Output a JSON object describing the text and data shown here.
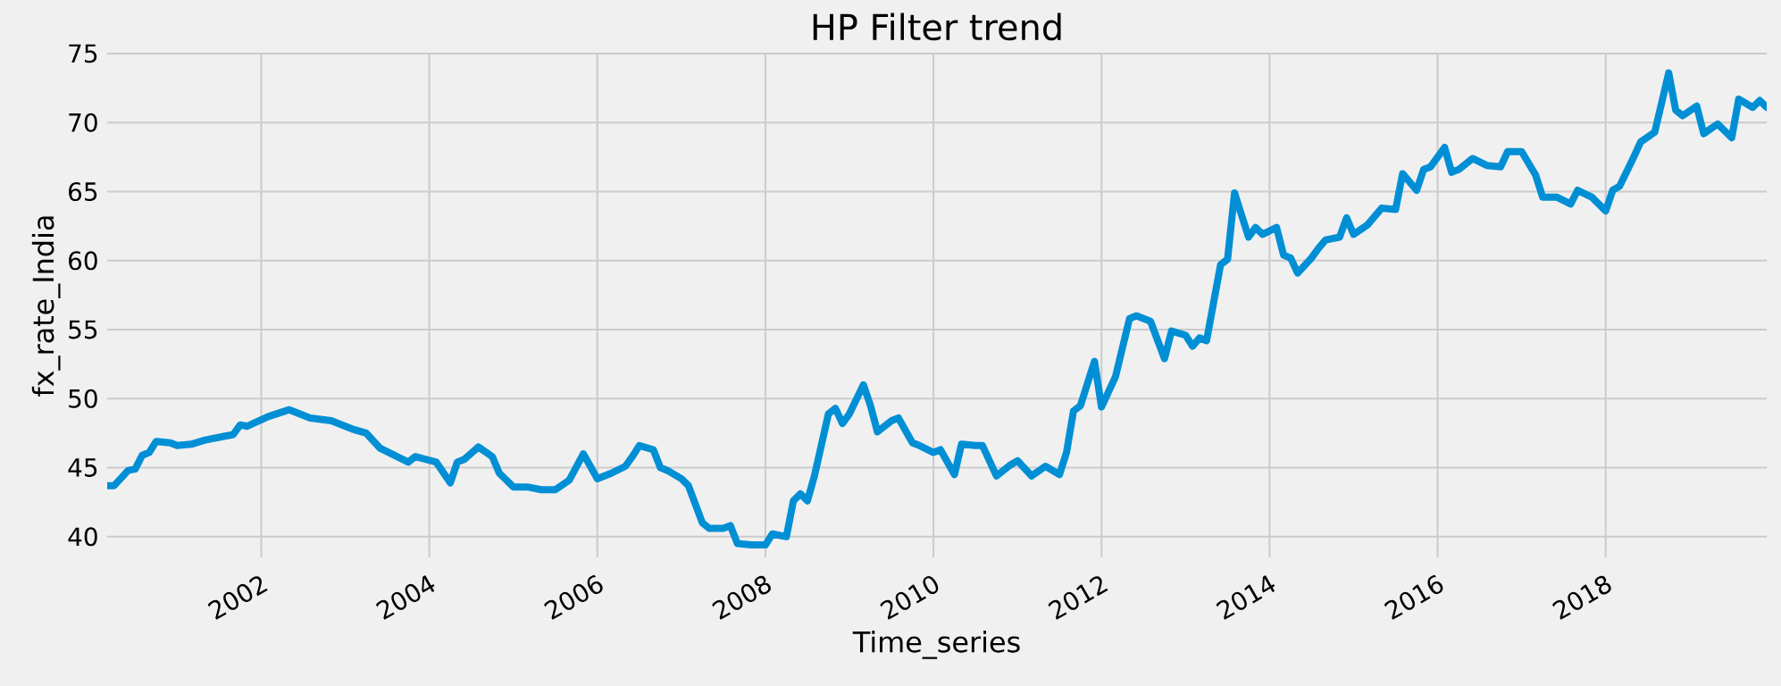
{
  "chart_data": {
    "type": "line",
    "title": "HP Filter trend",
    "xlabel": "Time_series",
    "ylabel": "fx_rate_India",
    "x": [
      "2000-03",
      "2000-04",
      "2000-06",
      "2000-07",
      "2000-08",
      "2000-09",
      "2000-10",
      "2000-12",
      "2001-01",
      "2001-03",
      "2001-05",
      "2001-08",
      "2001-09",
      "2001-10",
      "2001-11",
      "2002-02",
      "2002-05",
      "2002-08",
      "2002-11",
      "2003-02",
      "2003-04",
      "2003-06",
      "2003-08",
      "2003-10",
      "2003-11",
      "2004-02",
      "2004-04",
      "2004-05",
      "2004-06",
      "2004-08",
      "2004-10",
      "2004-11",
      "2005-01",
      "2005-03",
      "2005-05",
      "2005-07",
      "2005-09",
      "2005-11",
      "2006-01",
      "2006-03",
      "2006-05",
      "2006-06",
      "2006-07",
      "2006-09",
      "2006-10",
      "2006-11",
      "2007-01",
      "2007-02",
      "2007-04",
      "2007-05",
      "2007-07",
      "2007-08",
      "2007-09",
      "2007-11",
      "2008-01",
      "2008-02",
      "2008-04",
      "2008-05",
      "2008-06",
      "2008-07",
      "2008-08",
      "2008-10",
      "2008-11",
      "2008-12",
      "2009-01",
      "2009-03",
      "2009-04",
      "2009-05",
      "2009-07",
      "2009-08",
      "2009-10",
      "2009-11",
      "2010-01",
      "2010-02",
      "2010-04",
      "2010-05",
      "2010-07",
      "2010-08",
      "2010-10",
      "2010-12",
      "2011-01",
      "2011-03",
      "2011-05",
      "2011-07",
      "2011-08",
      "2011-09",
      "2011-10",
      "2011-12",
      "2012-01",
      "2012-03",
      "2012-05",
      "2012-06",
      "2012-08",
      "2012-10",
      "2012-11",
      "2013-01",
      "2013-02",
      "2013-03",
      "2013-04",
      "2013-06",
      "2013-07",
      "2013-08",
      "2013-10",
      "2013-11",
      "2013-12",
      "2014-02",
      "2014-03",
      "2014-04",
      "2014-05",
      "2014-07",
      "2014-08",
      "2014-09",
      "2014-11",
      "2014-12",
      "2015-01",
      "2015-03",
      "2015-05",
      "2015-07",
      "2015-08",
      "2015-10",
      "2015-11",
      "2015-12",
      "2016-02",
      "2016-03",
      "2016-04",
      "2016-06",
      "2016-08",
      "2016-10",
      "2016-11",
      "2017-01",
      "2017-03",
      "2017-04",
      "2017-06",
      "2017-08",
      "2017-09",
      "2017-11",
      "2018-01",
      "2018-02",
      "2018-03",
      "2018-05",
      "2018-06",
      "2018-08",
      "2018-10",
      "2018-11",
      "2018-12",
      "2019-02",
      "2019-03",
      "2019-05",
      "2019-07",
      "2019-08",
      "2019-10",
      "2019-11",
      "2019-12"
    ],
    "series": [
      {
        "color": "#008fd5",
        "values": [
          43.7,
          43.7,
          44.8,
          44.9,
          45.9,
          46.1,
          46.9,
          46.8,
          46.6,
          46.7,
          47.0,
          47.3,
          47.4,
          48.1,
          48.0,
          48.7,
          49.2,
          48.6,
          48.4,
          47.8,
          47.5,
          46.4,
          45.9,
          45.4,
          45.8,
          45.4,
          43.9,
          45.4,
          45.6,
          46.5,
          45.8,
          44.6,
          43.6,
          43.6,
          43.4,
          43.4,
          44.1,
          46.0,
          44.2,
          44.6,
          45.1,
          45.8,
          46.6,
          46.3,
          45.0,
          44.8,
          44.2,
          43.7,
          41.0,
          40.6,
          40.6,
          40.8,
          39.5,
          39.4,
          39.4,
          40.2,
          40.0,
          42.6,
          43.1,
          42.6,
          44.4,
          48.9,
          49.3,
          48.2,
          48.9,
          51.0,
          49.5,
          47.6,
          48.4,
          48.6,
          46.8,
          46.6,
          46.1,
          46.3,
          44.5,
          46.7,
          46.6,
          46.6,
          44.4,
          45.2,
          45.5,
          44.4,
          45.1,
          44.5,
          46.1,
          49.1,
          49.5,
          52.7,
          49.4,
          51.6,
          55.8,
          56.0,
          55.6,
          52.9,
          54.9,
          54.6,
          53.8,
          54.4,
          54.2,
          59.7,
          60.1,
          64.9,
          61.7,
          62.4,
          61.9,
          62.4,
          60.4,
          60.2,
          59.1,
          60.2,
          60.9,
          61.5,
          61.7,
          63.1,
          61.9,
          62.6,
          63.8,
          63.7,
          66.3,
          65.1,
          66.6,
          66.8,
          68.2,
          66.4,
          66.6,
          67.4,
          66.9,
          66.8,
          67.9,
          67.9,
          66.2,
          64.6,
          64.6,
          64.1,
          65.1,
          64.6,
          63.6,
          65.1,
          65.4,
          67.5,
          68.6,
          69.3,
          73.6,
          70.9,
          70.5,
          71.2,
          69.2,
          69.9,
          68.9,
          71.7,
          71.1,
          71.6,
          71.1
        ]
      }
    ],
    "xlim": [
      "2000-03",
      "2019-12"
    ],
    "xticks": [
      {
        "value": "2002-01",
        "label": "2002"
      },
      {
        "value": "2004-01",
        "label": "2004"
      },
      {
        "value": "2006-01",
        "label": "2006"
      },
      {
        "value": "2008-01",
        "label": "2008"
      },
      {
        "value": "2010-01",
        "label": "2010"
      },
      {
        "value": "2012-01",
        "label": "2012"
      },
      {
        "value": "2014-01",
        "label": "2014"
      },
      {
        "value": "2016-01",
        "label": "2016"
      },
      {
        "value": "2018-01",
        "label": "2018"
      }
    ],
    "ylim": [
      38.5,
      75
    ],
    "yticks": [
      40,
      45,
      50,
      55,
      60,
      65,
      70,
      75
    ],
    "grid": true,
    "marker": "none",
    "line_style": "solid"
  }
}
